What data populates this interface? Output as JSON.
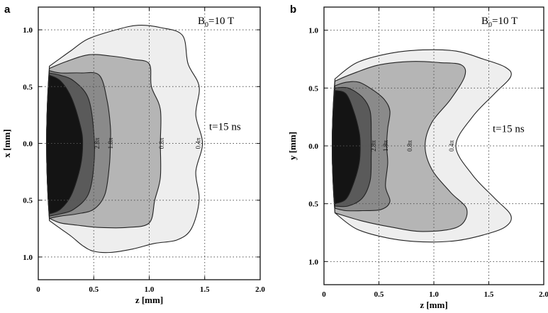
{
  "colors": {
    "level_0_4pi": "#eeeeee",
    "level_0_8pi": "#b5b5b5",
    "level_1_8pi": "#8a8a8a",
    "level_2_8pi": "#5a5a5a",
    "level_core": "#141414",
    "contour_line": "#222222",
    "grid": "#555555"
  },
  "chart_data": [
    {
      "type": "contour",
      "panel_letter": "a",
      "xlabel": "z [mm]",
      "ylabel": "x [mm]",
      "x_ticks": [
        "0",
        "0.5",
        "1.0",
        "1.5",
        "2.0"
      ],
      "y_ticks": [
        "1.0",
        "0.5",
        "0.0",
        "0.5",
        "1.0"
      ],
      "xlim": [
        0,
        2.0
      ],
      "ylim": [
        -1.2,
        1.2
      ],
      "grid": "dotted",
      "field_label": "B",
      "field_sub": "0",
      "field_value": "=10 T",
      "time_label": "t=15 ns",
      "contour_labels": [
        "2.8π",
        "1.8π",
        "0.8π",
        "0.4π"
      ],
      "contours": [
        {
          "level": "0.4π",
          "boundary": [
            [
              0.1,
              0.68
            ],
            [
              0.2,
              0.75
            ],
            [
              0.3,
              0.82
            ],
            [
              0.45,
              0.92
            ],
            [
              0.7,
              1.0
            ],
            [
              0.9,
              1.04
            ],
            [
              1.1,
              1.02
            ],
            [
              1.3,
              0.95
            ],
            [
              1.35,
              0.7
            ],
            [
              1.45,
              0.5
            ],
            [
              1.42,
              0.25
            ],
            [
              1.48,
              0.0
            ],
            [
              1.42,
              -0.25
            ],
            [
              1.45,
              -0.5
            ],
            [
              1.38,
              -0.75
            ],
            [
              1.25,
              -0.85
            ],
            [
              1.05,
              -0.88
            ],
            [
              0.85,
              -0.93
            ],
            [
              0.65,
              -0.96
            ],
            [
              0.5,
              -0.95
            ],
            [
              0.4,
              -0.9
            ],
            [
              0.3,
              -0.82
            ],
            [
              0.2,
              -0.75
            ],
            [
              0.1,
              -0.68
            ]
          ]
        },
        {
          "level": "0.8π",
          "boundary": [
            [
              0.1,
              0.66
            ],
            [
              0.25,
              0.72
            ],
            [
              0.45,
              0.78
            ],
            [
              0.65,
              0.77
            ],
            [
              0.85,
              0.74
            ],
            [
              1.0,
              0.7
            ],
            [
              1.02,
              0.5
            ],
            [
              1.1,
              0.3
            ],
            [
              1.1,
              0.0
            ],
            [
              1.1,
              -0.3
            ],
            [
              1.05,
              -0.5
            ],
            [
              1.0,
              -0.7
            ],
            [
              0.8,
              -0.74
            ],
            [
              0.55,
              -0.74
            ],
            [
              0.35,
              -0.72
            ],
            [
              0.2,
              -0.7
            ],
            [
              0.1,
              -0.66
            ]
          ]
        },
        {
          "level": "1.8π",
          "boundary": [
            [
              0.1,
              0.64
            ],
            [
              0.2,
              0.62
            ],
            [
              0.38,
              0.62
            ],
            [
              0.55,
              0.6
            ],
            [
              0.62,
              0.38
            ],
            [
              0.65,
              0.15
            ],
            [
              0.65,
              0.0
            ],
            [
              0.64,
              -0.2
            ],
            [
              0.6,
              -0.45
            ],
            [
              0.5,
              -0.58
            ],
            [
              0.35,
              -0.62
            ],
            [
              0.2,
              -0.64
            ],
            [
              0.1,
              -0.66
            ]
          ]
        },
        {
          "level": "2.8π",
          "boundary": [
            [
              0.1,
              0.62
            ],
            [
              0.2,
              0.6
            ],
            [
              0.32,
              0.55
            ],
            [
              0.45,
              0.4
            ],
            [
              0.5,
              0.1
            ],
            [
              0.5,
              -0.2
            ],
            [
              0.45,
              -0.45
            ],
            [
              0.32,
              -0.58
            ],
            [
              0.2,
              -0.62
            ],
            [
              0.1,
              -0.64
            ]
          ]
        },
        {
          "level": "core",
          "boundary": [
            [
              0.1,
              0.6
            ],
            [
              0.2,
              0.55
            ],
            [
              0.3,
              0.4
            ],
            [
              0.38,
              0.15
            ],
            [
              0.4,
              0.0
            ],
            [
              0.38,
              -0.2
            ],
            [
              0.3,
              -0.45
            ],
            [
              0.2,
              -0.58
            ],
            [
              0.1,
              -0.62
            ]
          ]
        }
      ],
      "contour_label_positions": [
        [
          0.55,
          0.0
        ],
        [
          0.67,
          0.0
        ],
        [
          1.13,
          0.0
        ],
        [
          1.46,
          0.0
        ]
      ]
    },
    {
      "type": "contour",
      "panel_letter": "b",
      "xlabel": "z [mm]",
      "ylabel": "y [mm]",
      "x_ticks": [
        "0",
        "0.5",
        "1.0",
        "1.5",
        "2.0"
      ],
      "y_ticks": [
        "1.0",
        "0.5",
        "0.0",
        "0.5",
        "1.0"
      ],
      "xlim": [
        0,
        2.0
      ],
      "ylim": [
        -1.2,
        1.2
      ],
      "grid": "dotted",
      "field_label": "B",
      "field_sub": "0",
      "field_value": "=10 T",
      "time_label": "t=15 ns",
      "contour_labels": [
        "2.8π",
        "1.8π",
        "0.8π",
        "0.4π"
      ],
      "contours": [
        {
          "level": "0.4π",
          "boundary": [
            [
              0.1,
              0.58
            ],
            [
              0.3,
              0.72
            ],
            [
              0.6,
              0.8
            ],
            [
              0.9,
              0.83
            ],
            [
              1.2,
              0.82
            ],
            [
              1.45,
              0.75
            ],
            [
              1.65,
              0.68
            ],
            [
              1.7,
              0.6
            ],
            [
              1.55,
              0.45
            ],
            [
              1.35,
              0.25
            ],
            [
              1.2,
              0.0
            ],
            [
              1.35,
              -0.25
            ],
            [
              1.55,
              -0.45
            ],
            [
              1.7,
              -0.6
            ],
            [
              1.65,
              -0.7
            ],
            [
              1.45,
              -0.77
            ],
            [
              1.2,
              -0.82
            ],
            [
              0.9,
              -0.83
            ],
            [
              0.6,
              -0.8
            ],
            [
              0.3,
              -0.72
            ],
            [
              0.1,
              -0.58
            ]
          ]
        },
        {
          "level": "0.8π",
          "boundary": [
            [
              0.1,
              0.56
            ],
            [
              0.25,
              0.62
            ],
            [
              0.5,
              0.7
            ],
            [
              0.8,
              0.73
            ],
            [
              1.05,
              0.72
            ],
            [
              1.25,
              0.7
            ],
            [
              1.28,
              0.6
            ],
            [
              1.15,
              0.4
            ],
            [
              0.98,
              0.2
            ],
            [
              0.92,
              0.0
            ],
            [
              0.98,
              -0.2
            ],
            [
              1.15,
              -0.4
            ],
            [
              1.3,
              -0.55
            ],
            [
              1.22,
              -0.7
            ],
            [
              0.9,
              -0.74
            ],
            [
              0.6,
              -0.7
            ],
            [
              0.35,
              -0.65
            ],
            [
              0.1,
              -0.58
            ]
          ]
        },
        {
          "level": "1.8π",
          "boundary": [
            [
              0.1,
              0.52
            ],
            [
              0.2,
              0.55
            ],
            [
              0.32,
              0.55
            ],
            [
              0.45,
              0.48
            ],
            [
              0.55,
              0.4
            ],
            [
              0.6,
              0.3
            ],
            [
              0.58,
              0.15
            ],
            [
              0.57,
              0.0
            ],
            [
              0.58,
              -0.15
            ],
            [
              0.56,
              -0.35
            ],
            [
              0.6,
              -0.48
            ],
            [
              0.52,
              -0.55
            ],
            [
              0.35,
              -0.56
            ],
            [
              0.2,
              -0.56
            ],
            [
              0.1,
              -0.54
            ]
          ]
        },
        {
          "level": "2.8π",
          "boundary": [
            [
              0.1,
              0.5
            ],
            [
              0.22,
              0.5
            ],
            [
              0.35,
              0.42
            ],
            [
              0.42,
              0.3
            ],
            [
              0.43,
              0.1
            ],
            [
              0.43,
              -0.1
            ],
            [
              0.42,
              -0.3
            ],
            [
              0.35,
              -0.45
            ],
            [
              0.22,
              -0.52
            ],
            [
              0.1,
              -0.52
            ]
          ]
        },
        {
          "level": "core",
          "boundary": [
            [
              0.1,
              0.48
            ],
            [
              0.2,
              0.45
            ],
            [
              0.27,
              0.3
            ],
            [
              0.32,
              0.12
            ],
            [
              0.33,
              0.0
            ],
            [
              0.32,
              -0.15
            ],
            [
              0.27,
              -0.32
            ],
            [
              0.2,
              -0.46
            ],
            [
              0.1,
              -0.5
            ]
          ]
        }
      ],
      "contour_label_positions": [
        [
          0.47,
          0.0
        ],
        [
          0.58,
          0.0
        ],
        [
          0.8,
          0.0
        ],
        [
          1.18,
          0.0
        ]
      ]
    }
  ]
}
